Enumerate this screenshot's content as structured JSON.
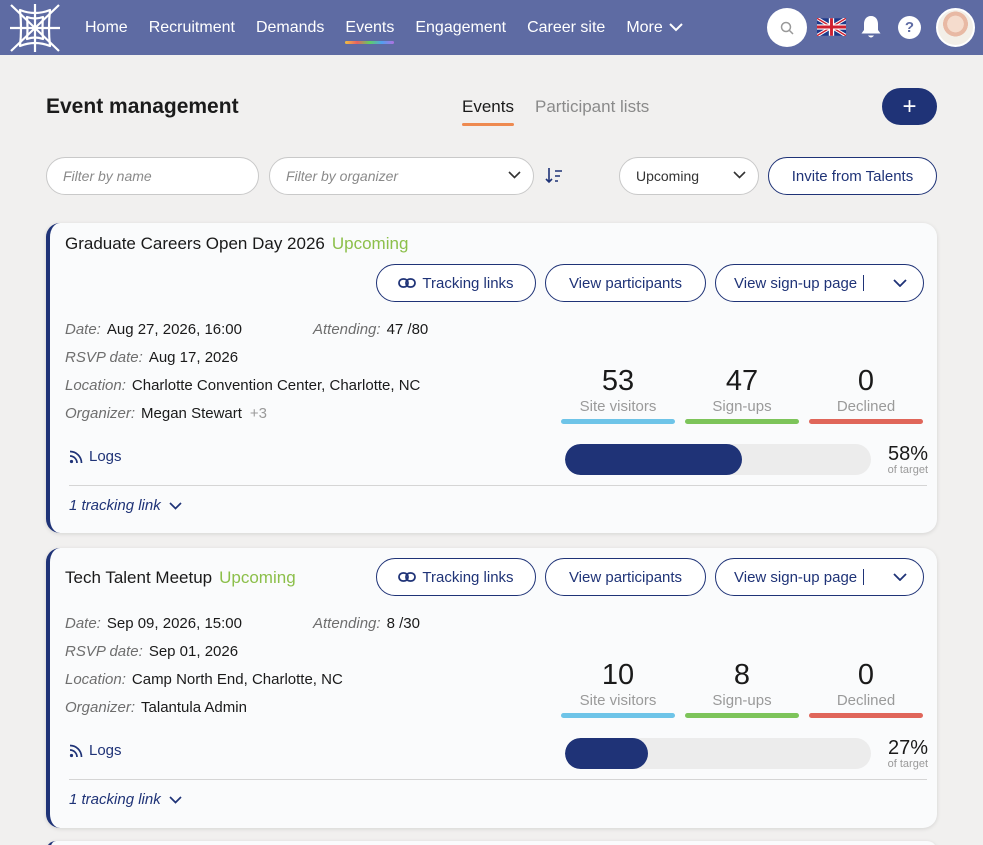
{
  "nav": {
    "items": [
      "Home",
      "Recruitment",
      "Demands",
      "Events",
      "Engagement",
      "Career site",
      "More"
    ],
    "active": "Events"
  },
  "page": {
    "title": "Event management",
    "tabs": [
      "Events",
      "Participant lists"
    ],
    "active_tab": "Events",
    "add_label": "+"
  },
  "filters": {
    "name_placeholder": "Filter by name",
    "organizer_placeholder": "Filter by organizer",
    "status_value": "Upcoming",
    "invite_label": "Invite from Talents"
  },
  "labels": {
    "date": "Date:",
    "attending": "Attending:",
    "rsvp": "RSVP date:",
    "location": "Location:",
    "organizer": "Organizer:",
    "tracking_links": "Tracking links",
    "view_participants": "View participants",
    "view_signup": "View sign-up page",
    "logs": "Logs",
    "site_visitors": "Site visitors",
    "signups": "Sign-ups",
    "declined": "Declined",
    "of_target": "of target"
  },
  "colors": {
    "nav_bg": "#5e6ba3",
    "accent": "#1f3377",
    "upcoming": "#8cbf4a",
    "visitors_bar": "#6ec4e8",
    "signups_bar": "#7dc45a",
    "declined_bar": "#e0665a"
  },
  "events": [
    {
      "title": "Graduate Careers Open Day 2026",
      "status": "Upcoming",
      "date": "Aug 27, 2026, 16:00",
      "attending": "47 /80",
      "rsvp": "Aug 17, 2026",
      "location": "Charlotte Convention Center, Charlotte, NC",
      "organizer": "Megan Stewart",
      "organizer_extra": "+3",
      "site_visitors": "53",
      "signups": "47",
      "declined": "0",
      "progress": 0.58,
      "progress_label": "58%",
      "tracking": "1 tracking link"
    },
    {
      "title": "Tech Talent Meetup",
      "status": "Upcoming",
      "date": "Sep 09, 2026, 15:00",
      "attending": "8 /30",
      "rsvp": "Sep 01, 2026",
      "location": "Camp North End, Charlotte, NC",
      "organizer": "Talantula Admin",
      "organizer_extra": "",
      "site_visitors": "10",
      "signups": "8",
      "declined": "0",
      "progress": 0.27,
      "progress_label": "27%",
      "tracking": "1 tracking link"
    }
  ]
}
